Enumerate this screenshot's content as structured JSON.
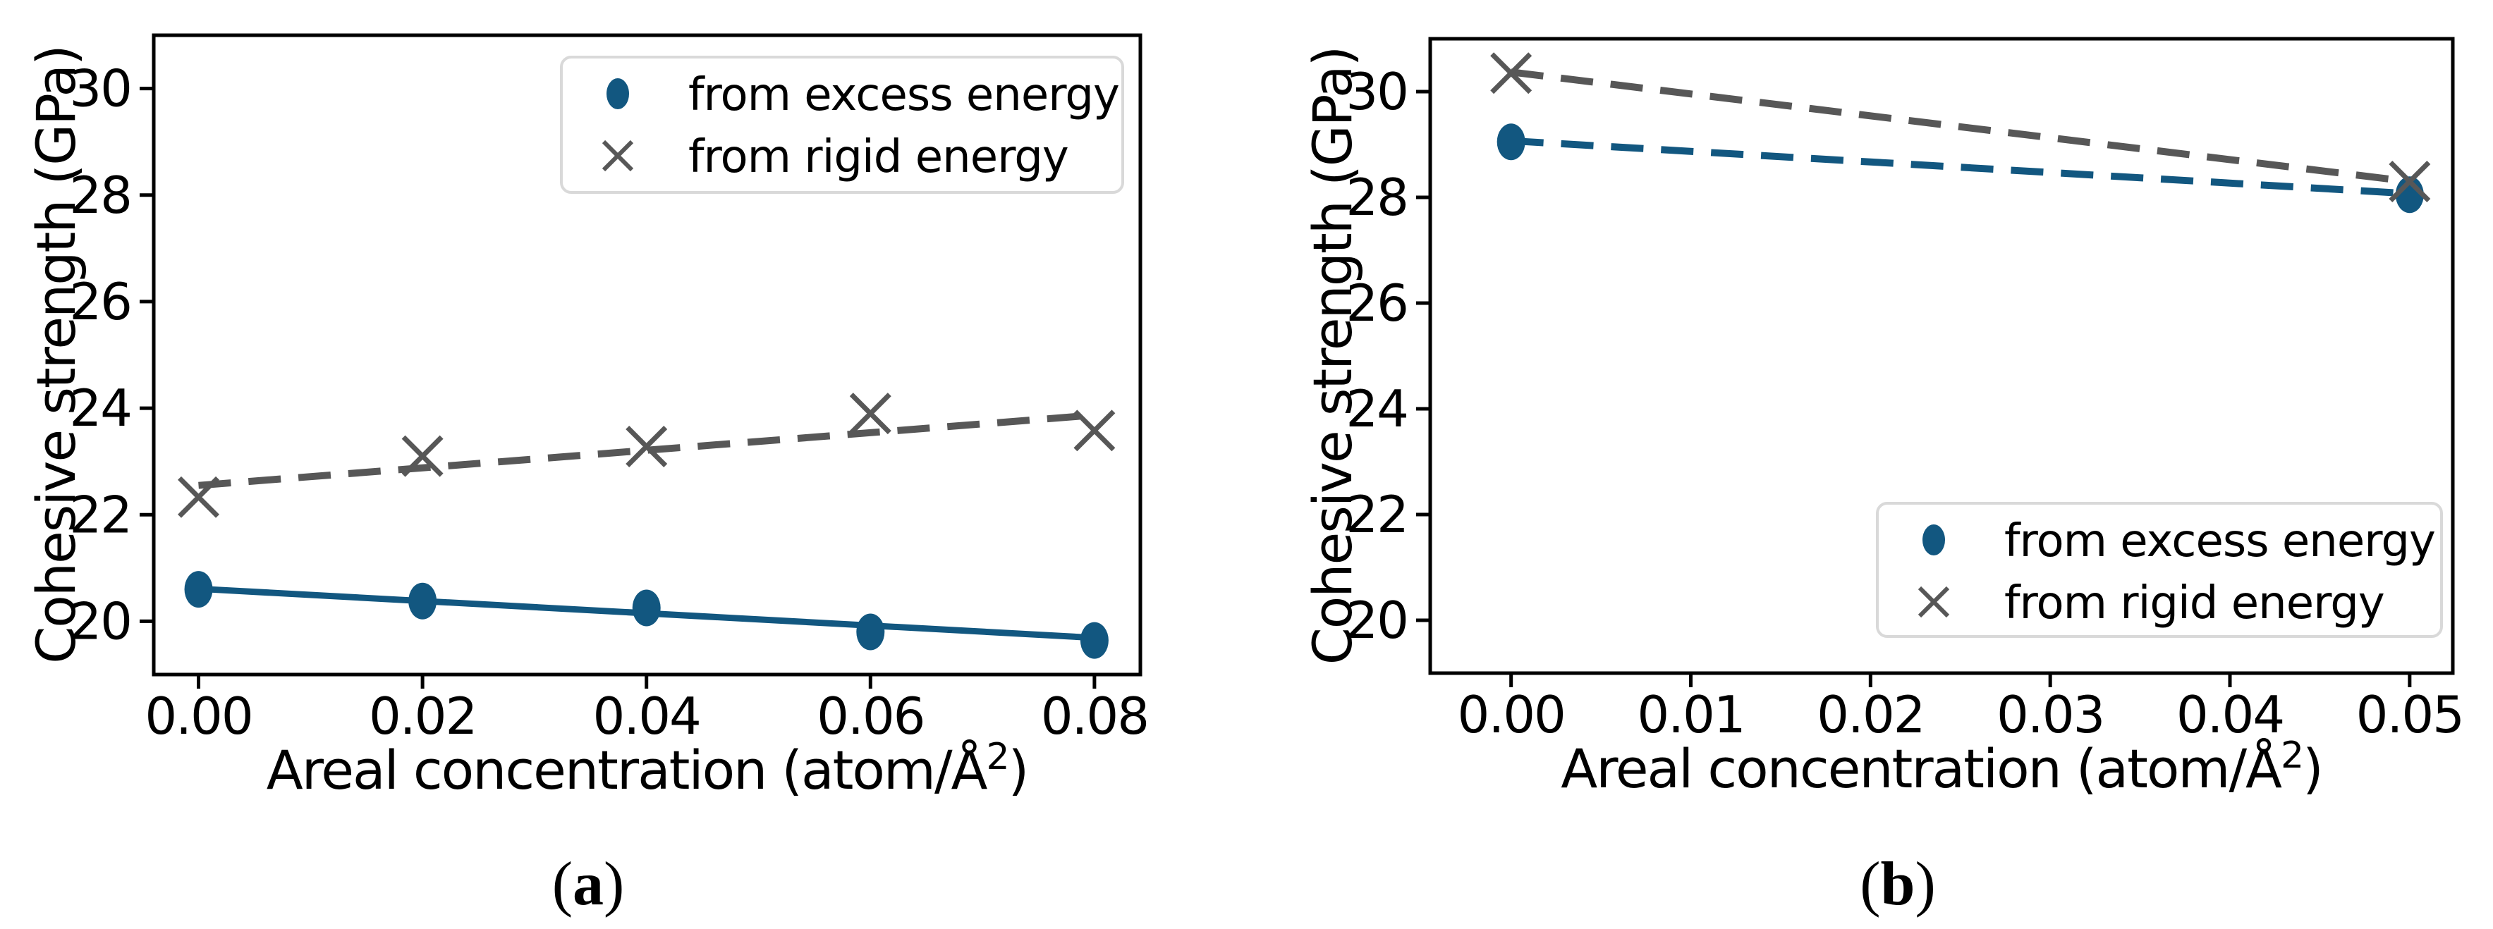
{
  "figure": {
    "background": "#ffffff",
    "colors": {
      "excess_blue": "#125780",
      "rigid_gray": "#575757",
      "axis_black": "#000000",
      "legend_border": "#d9d9d9",
      "legend_bg": "#ffffff"
    },
    "caption_a": {
      "open": "(",
      "letter": "a",
      "close": ")"
    },
    "caption_b": {
      "open": "(",
      "letter": "b",
      "close": ")"
    }
  },
  "chart_data": [
    {
      "id": "a",
      "type": "scatter",
      "title": "",
      "xlabel": "Areal concentration (atom/Å²)",
      "xlabel_base": "Areal concentration (atom/Å",
      "xlabel_sup": "2",
      "xlabel_close": ")",
      "ylabel": "Cohesive strength (GPa)",
      "xlim": [
        -0.004,
        0.0841
      ],
      "ylim": [
        19,
        31
      ],
      "xticks": [
        0.0,
        0.02,
        0.04,
        0.06,
        0.08
      ],
      "xtick_labels": [
        "0.00",
        "0.02",
        "0.04",
        "0.06",
        "0.08"
      ],
      "yticks": [
        20,
        22,
        24,
        26,
        28,
        30
      ],
      "ytick_labels": [
        "20",
        "22",
        "24",
        "26",
        "28",
        "30"
      ],
      "grid": false,
      "legend_position": "upper right",
      "series": [
        {
          "name": "from excess energy",
          "marker": "circle",
          "color_key": "excess_blue",
          "x": [
            0.0,
            0.02,
            0.04,
            0.06,
            0.08
          ],
          "y": [
            20.6,
            20.38,
            20.25,
            19.8,
            19.64
          ],
          "fit_line": {
            "style": "solid",
            "x": [
              0.0,
              0.08
            ],
            "y": [
              20.61,
              19.69
            ]
          }
        },
        {
          "name": "from rigid energy",
          "marker": "x",
          "color_key": "rigid_gray",
          "x": [
            0.0,
            0.02,
            0.04,
            0.06,
            0.08
          ],
          "y": [
            22.33,
            23.1,
            23.28,
            23.9,
            23.58
          ],
          "fit_line": {
            "style": "dashed",
            "x": [
              0.0,
              0.08
            ],
            "y": [
              22.55,
              23.87
            ]
          }
        }
      ]
    },
    {
      "id": "b",
      "type": "scatter",
      "title": "",
      "xlabel": "Areal concentration (atom/Å²)",
      "xlabel_base": "Areal concentration (atom/Å",
      "xlabel_sup": "2",
      "xlabel_close": ")",
      "ylabel": "Cohesive strength (GPa)",
      "xlim": [
        -0.0045,
        0.0524
      ],
      "ylim": [
        19,
        31
      ],
      "xticks": [
        0.0,
        0.01,
        0.02,
        0.03,
        0.04,
        0.05
      ],
      "xtick_labels": [
        "0.00",
        "0.01",
        "0.02",
        "0.03",
        "0.04",
        "0.05"
      ],
      "yticks": [
        20,
        22,
        24,
        26,
        28,
        30
      ],
      "ytick_labels": [
        "20",
        "22",
        "24",
        "26",
        "28",
        "30"
      ],
      "grid": false,
      "legend_position": "lower right",
      "series": [
        {
          "name": "from excess energy",
          "marker": "circle",
          "color_key": "excess_blue",
          "x": [
            0.0,
            0.05
          ],
          "y": [
            29.05,
            28.05
          ],
          "fit_line": {
            "style": "dashed",
            "x": [
              0.0,
              0.05
            ],
            "y": [
              29.07,
              28.07
            ]
          }
        },
        {
          "name": "from rigid energy",
          "marker": "x",
          "color_key": "rigid_gray",
          "x": [
            0.0,
            0.05
          ],
          "y": [
            30.35,
            28.3
          ],
          "fit_line": {
            "style": "dashed",
            "x": [
              0.0,
              0.05
            ],
            "y": [
              30.37,
              28.3
            ]
          }
        }
      ]
    }
  ]
}
